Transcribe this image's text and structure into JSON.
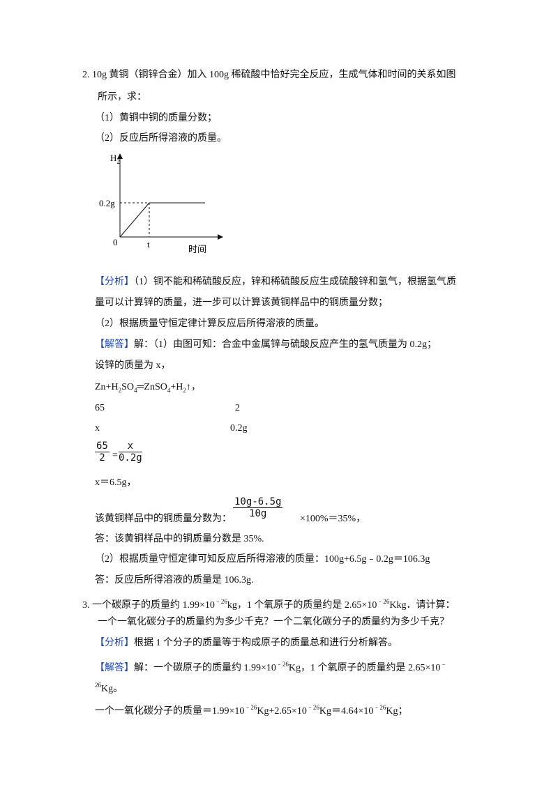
{
  "problem2": {
    "number": "2.",
    "question": [
      "10g 黄铜（铜锌合金）加入 100g 稀硫酸中恰好完全反应，生成气体和时间的关系如图",
      "所示，求："
    ],
    "parts": [
      "（1）黄铜中铜的质量分数；",
      "（2）反应后所得溶液的质量。"
    ],
    "graph": {
      "y_label": [
        "H",
        "2"
      ],
      "y_tick": "0.2g",
      "origin": "0",
      "x_tick": "t",
      "x_label": "时间"
    },
    "analysis_tag": "【分析】",
    "analysis": [
      "（1）铜不能和稀硫酸反应，锌和稀硫酸反应生成硫酸锌和氢气，根据氢气质",
      "量可以计算锌的质量，进一步可以计算该黄铜样品中的铜质量分数；",
      "（2）根据质量守恒定律计算反应后所得溶液的质量。"
    ],
    "answer_tag": "【解答】",
    "answer_first": "解：（1）由图可知：合金中金属锌与硫酸反应产生的氢气质量为 0.2g；",
    "let": "设锌的质量为 x，",
    "equation": [
      "Zn+H",
      "2",
      "SO",
      "4",
      "═ZnSO",
      "4",
      "+H",
      "2",
      "↑，"
    ],
    "ratio_top": [
      "65",
      "2"
    ],
    "ratio_bottom": [
      "x",
      "0.2g"
    ],
    "proportion": {
      "left_num": "65",
      "left_den": "2",
      "eq": "=",
      "right_num": "x",
      "right_den": "0.2g"
    },
    "x_result": "x＝6.5g，",
    "fraction_intro": "该黄铜样品中的铜质量分数为：",
    "fraction": {
      "num": "10g-6.5g",
      "den": "10g",
      "tail": "×100%＝35%，"
    },
    "reply1": "答：该黄铜样品中的铜质量分数是 35%.",
    "part2": "（2）根据质量守恒定律可知反应后所得溶液的质量：100g+6.5g﹣0.2g＝106.3g",
    "reply2": "答：反应后所得溶液的质量是 106.3g."
  },
  "problem3": {
    "number": "3.",
    "question1": [
      "一个碳原子的质量约 1.99×10",
      "﹣26",
      "kg，1 个氧原子的质量约是 2.65×10",
      "﹣26",
      "Kkg．请计算："
    ],
    "question2": "一个一氧化碳分子的质量约为多少千克？一个二氧化碳分子的质量约为多少千克？",
    "analysis_tag": "【分析】",
    "analysis": "根据 1 个分子的质量等于构成原子的质量总和进行分析解答。",
    "answer_tag": "【解答】",
    "answer1": [
      "解：一个碳原子的质量约 1.99×10",
      "﹣26",
      "Kg，1 个氧原子的质量约是 2.65×10",
      "﹣"
    ],
    "answer2": [
      "",
      "26",
      "Kg。"
    ],
    "answer3": [
      "一个一氧化碳分子的质量＝1.99×10",
      "﹣26",
      "Kg+2.65×10",
      "﹣26",
      "Kg＝4.64×10",
      "﹣26",
      "Kg；"
    ]
  }
}
